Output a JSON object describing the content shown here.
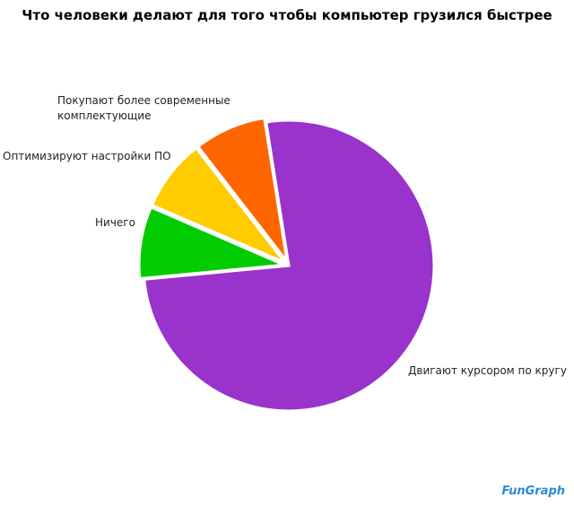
{
  "chart_data": {
    "type": "pie",
    "title": "Что человеки делают для того чтобы компьютер грузился быстрее",
    "categories": [
      "Двигают курсором по кругу",
      "Ничего",
      "Оптимизируют настройки ПО",
      "Покупают более современные комплектующие"
    ],
    "values": [
      76,
      8,
      8,
      8
    ],
    "colors": [
      "#9933cc",
      "#00cc00",
      "#ffcc00",
      "#ff6600"
    ]
  },
  "logo": "FunGraph"
}
